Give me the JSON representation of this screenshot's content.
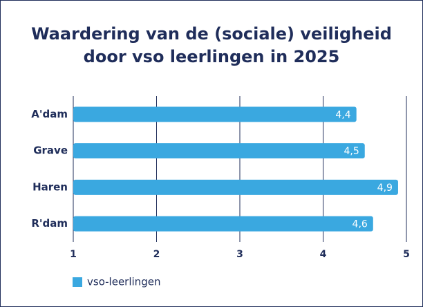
{
  "chart_data": {
    "type": "hbar",
    "title": [
      "Waardering van de (sociale) veiligheid",
      "door vso leerlingen in 2025"
    ],
    "categories": [
      "A'dam",
      "Grave",
      "Haren",
      "R'dam"
    ],
    "series": [
      {
        "name": "vso-leerlingen",
        "color": "#3aa8e0",
        "values": [
          4.4,
          4.5,
          4.9,
          4.6
        ],
        "value_labels": [
          "4,4",
          "4,5",
          "4,9",
          "4,6"
        ]
      }
    ],
    "xlim": [
      1,
      5
    ],
    "xticks": [
      1,
      2,
      3,
      4,
      5
    ],
    "grid": true
  }
}
